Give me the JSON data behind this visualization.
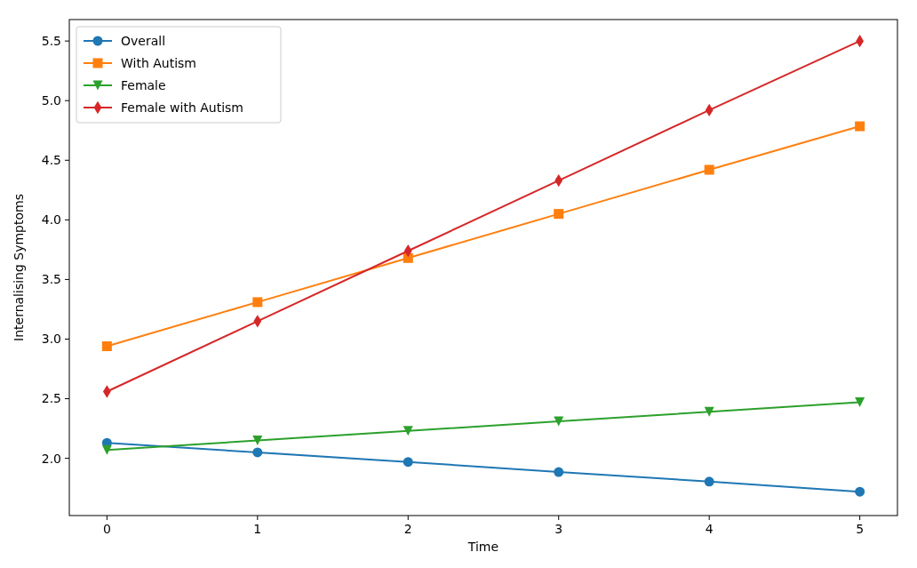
{
  "chart_data": {
    "type": "line",
    "xlabel": "Time",
    "ylabel": "Internalising Symptoms",
    "x": [
      0,
      1,
      2,
      3,
      4,
      5
    ],
    "series": [
      {
        "name": "Overall",
        "color": "#1f77b4",
        "marker": "circle",
        "values": [
          2.13,
          2.05,
          1.97,
          1.885,
          1.805,
          1.72
        ]
      },
      {
        "name": "With Autism",
        "color": "#ff7f0e",
        "marker": "square",
        "values": [
          2.94,
          3.31,
          3.68,
          4.05,
          4.42,
          4.785
        ]
      },
      {
        "name": "Female",
        "color": "#2ca02c",
        "marker": "triangle",
        "values": [
          2.07,
          2.15,
          2.23,
          2.31,
          2.39,
          2.47
        ]
      },
      {
        "name": "Female with Autism",
        "color": "#d62728",
        "marker": "diamond",
        "values": [
          2.56,
          3.15,
          3.74,
          4.33,
          4.92,
          5.5
        ]
      }
    ],
    "xlim": [
      -0.25,
      5.25
    ],
    "ylim": [
      1.52,
      5.68
    ],
    "xticks": [
      0,
      1,
      2,
      3,
      4,
      5
    ],
    "yticks": [
      {
        "value": 2,
        "label": "2.0"
      },
      2.5,
      {
        "value": 3,
        "label": "3.0"
      },
      3.5,
      {
        "value": 4,
        "label": "4.0"
      },
      4.5,
      {
        "value": 5,
        "label": "5.0"
      },
      5.5
    ],
    "grid": false,
    "legend": "top left"
  }
}
